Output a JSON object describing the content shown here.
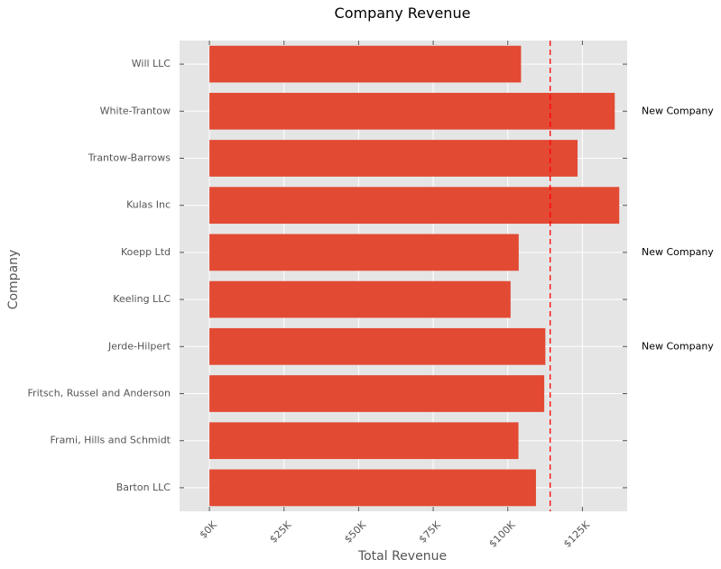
{
  "chart_data": {
    "type": "bar",
    "orientation": "horizontal",
    "title": "Company Revenue",
    "xlabel": "Total Revenue",
    "ylabel": "Company",
    "categories": [
      "Barton LLC",
      "Frami, Hills and Schmidt",
      "Fritsch, Russel and Anderson",
      "Jerde-Hilpert",
      "Keeling LLC",
      "Koepp Ltd",
      "Kulas Inc",
      "Trantow-Barrows",
      "White-Trantow",
      "Will LLC"
    ],
    "values": [
      109438,
      103569,
      112214,
      112591,
      100934,
      103660,
      137352,
      123382,
      135841,
      104437
    ],
    "xlim": [
      -10000,
      140000
    ],
    "xticks": [
      0,
      25000,
      50000,
      75000,
      100000,
      125000
    ],
    "xtick_labels": [
      "$0K",
      "$25K",
      "$50K",
      "$75K",
      "$100K",
      "$125K"
    ],
    "reference_line": {
      "value": 114200,
      "style": "dashed",
      "color": "#ff0000"
    },
    "annotations": [
      {
        "category": "White-Trantow",
        "text": "New Company"
      },
      {
        "category": "Koepp Ltd",
        "text": "New Company"
      },
      {
        "category": "Jerde-Hilpert",
        "text": "New Company"
      }
    ],
    "grid": true,
    "colors": {
      "bar": "#e24a33",
      "background": "#e5e5e5",
      "grid": "#ffffff",
      "reference_line": "#ff0000"
    }
  }
}
